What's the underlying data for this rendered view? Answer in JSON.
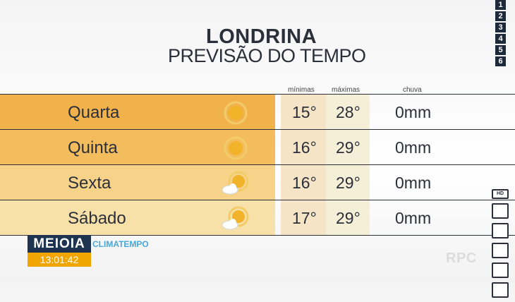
{
  "header": {
    "city": "LONDRINA",
    "subtitle": "PREVISÃO DO TEMPO"
  },
  "page_numbers": [
    "1",
    "2",
    "3",
    "4",
    "5",
    "6"
  ],
  "columns": {
    "min": "mínimas",
    "max": "máximas",
    "rain": "chuva"
  },
  "forecast": [
    {
      "day": "Quarta",
      "icon": "sun-icon",
      "min": "15°",
      "max": "28°",
      "rain": "0mm",
      "color": "#f1b24c"
    },
    {
      "day": "Quinta",
      "icon": "sun-icon",
      "min": "16°",
      "max": "29°",
      "rain": "0mm",
      "color": "#f3bc5d"
    },
    {
      "day": "Sexta",
      "icon": "sun-cloud-icon",
      "min": "16°",
      "max": "29°",
      "rain": "0mm",
      "color": "#f6d389"
    },
    {
      "day": "Sábado",
      "icon": "sun-cloud-icon",
      "min": "17°",
      "max": "29°",
      "rain": "0mm",
      "color": "#f8e1a8"
    }
  ],
  "side_icons": [
    "hd-icon",
    "g1-icon",
    "tv-icon",
    "camera-icon",
    "video-icon",
    "home-icon"
  ],
  "footer": {
    "show_logo": "MEIOIA",
    "clock": "13:01:42",
    "provider": "CLIMATEMPO",
    "channel_watermark": "RPC"
  }
}
